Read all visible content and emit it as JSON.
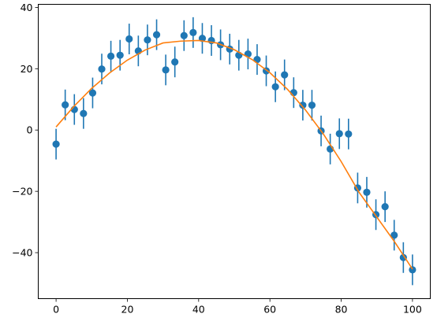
{
  "chart_data": {
    "type": "scatter",
    "title": "",
    "xlabel": "",
    "ylabel": "",
    "xlim": [
      -5,
      105
    ],
    "ylim": [
      -55,
      41
    ],
    "grid": false,
    "x_ticks": [
      0,
      20,
      40,
      60,
      80,
      100
    ],
    "y_ticks": [
      -40,
      -20,
      0,
      20,
      40
    ],
    "x_tick_labels": [
      "0",
      "20",
      "40",
      "60",
      "80",
      "100"
    ],
    "y_tick_labels": [
      "−40",
      "−20",
      "0",
      "20",
      "40"
    ],
    "series": [
      {
        "kind": "errorbar",
        "color": "#1f77b4",
        "error": 5,
        "x": [
          0,
          2.56,
          5.13,
          7.69,
          10.26,
          12.82,
          15.38,
          17.95,
          20.51,
          23.08,
          25.64,
          28.21,
          30.77,
          33.33,
          35.9,
          38.46,
          41.03,
          43.59,
          46.15,
          48.72,
          51.28,
          53.85,
          56.41,
          58.97,
          61.54,
          64.1,
          66.67,
          69.23,
          71.79,
          74.36,
          76.92,
          79.49,
          82.05,
          84.62,
          87.18,
          89.74,
          92.31,
          94.87,
          97.44,
          100
        ],
        "y": [
          -4.6,
          8.2,
          6.7,
          5.4,
          12.1,
          19.9,
          24.1,
          24.4,
          29.7,
          25.8,
          29.4,
          31.1,
          19.6,
          22.2,
          30.8,
          31.8,
          29.9,
          29.2,
          27.8,
          26.4,
          24.4,
          24.8,
          23.0,
          19.3,
          14.1,
          18.0,
          12.2,
          8.1,
          8.1,
          -0.3,
          -6.2,
          -1.2,
          -1.3,
          -18.9,
          -20.3,
          -27.6,
          -25.0,
          -34.3,
          -41.6,
          -45.6
        ]
      },
      {
        "kind": "line",
        "color": "#ff7f0e",
        "x": [
          0,
          5,
          10,
          15,
          20,
          25,
          30,
          35,
          40,
          45,
          50,
          55,
          60,
          65,
          70,
          75,
          80,
          85,
          90,
          95,
          100
        ],
        "y": [
          1.0,
          7.7,
          13.6,
          18.6,
          22.8,
          26.1,
          28.4,
          29.0,
          29.2,
          28.4,
          26.2,
          23.0,
          18.7,
          13.2,
          6.5,
          -1.3,
          -10.3,
          -20.3,
          -28.4,
          -36.5,
          -45.4
        ]
      }
    ]
  }
}
